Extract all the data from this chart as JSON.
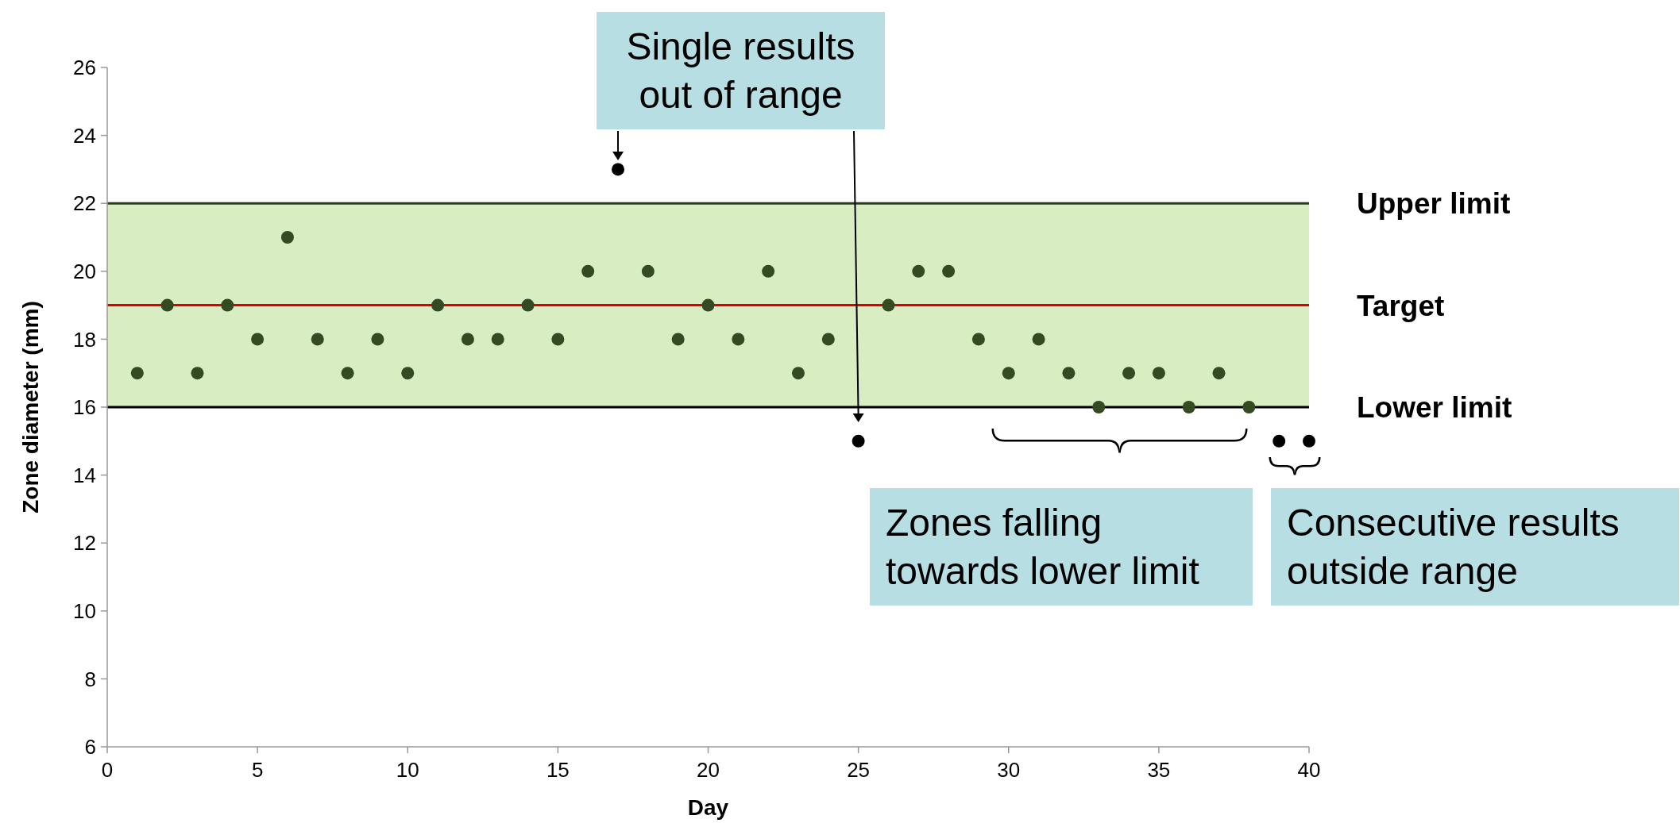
{
  "chart_data": {
    "type": "scatter",
    "xlabel": "Day",
    "ylabel": "Zone diameter (mm)",
    "xlim": [
      0,
      40
    ],
    "xticks": [
      0,
      5,
      10,
      15,
      20,
      25,
      30,
      35,
      40
    ],
    "ylim": [
      6,
      26
    ],
    "yticks": [
      6,
      8,
      10,
      12,
      14,
      16,
      18,
      20,
      22,
      24,
      26
    ],
    "marker": "circle",
    "grid": false,
    "legend": false,
    "series": [
      {
        "color": "#344a22",
        "x": [
          1,
          2,
          3,
          4,
          5,
          6,
          7,
          8,
          9,
          10,
          11,
          12,
          13,
          14,
          15,
          16,
          18,
          19,
          20,
          21,
          22,
          23,
          24,
          26,
          27,
          28,
          29,
          30,
          31,
          32,
          33,
          34,
          35,
          36,
          37,
          38
        ],
        "values": [
          17,
          19,
          17,
          19,
          18,
          21,
          18,
          17,
          18,
          17,
          19,
          18,
          18,
          19,
          18,
          20,
          20,
          18,
          19,
          18,
          20,
          17,
          18,
          19,
          20,
          20,
          18,
          17,
          18,
          17,
          16,
          17,
          17,
          16,
          17,
          16
        ]
      },
      {
        "color": "#000000",
        "x": [
          17,
          25,
          39,
          40
        ],
        "values": [
          23,
          15,
          15,
          15
        ]
      }
    ],
    "bands": [
      {
        "axis": "y",
        "from": 16,
        "to": 22,
        "color": "#d8edc2"
      }
    ],
    "ref_lines": [
      {
        "axis": "y",
        "value": 22,
        "label": "Upper limit",
        "color": "#2c3d1c"
      },
      {
        "axis": "y",
        "value": 19,
        "label": "Target",
        "color": "#e00000"
      },
      {
        "axis": "y",
        "value": 16,
        "label": "Lower limit",
        "color": "#000000"
      }
    ],
    "annotations": [
      "Single results\nout of range",
      "Zones falling\ntowards lower limit",
      "Consecutive results\noutside range"
    ]
  }
}
